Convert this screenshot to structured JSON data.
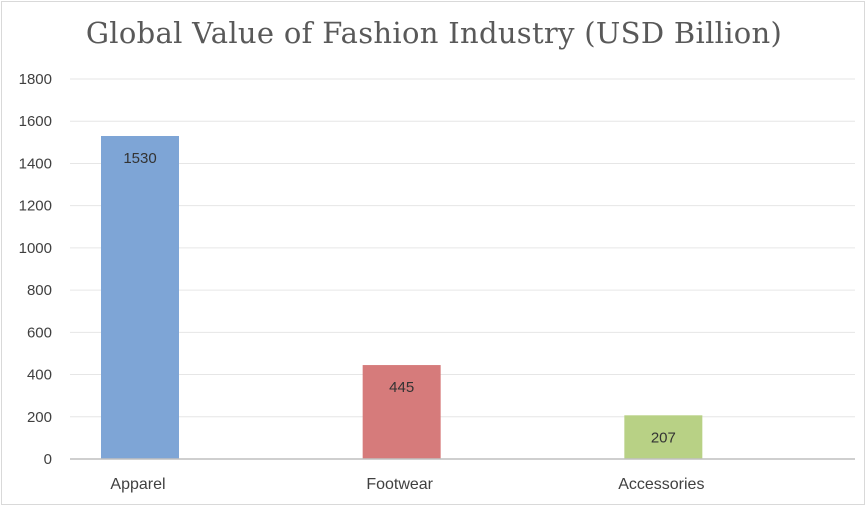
{
  "chart_data": {
    "type": "bar",
    "title": "Global Value of Fashion Industry (USD Billion)",
    "categories": [
      "Apparel",
      "Footwear",
      "Accessories"
    ],
    "values": [
      1530,
      445,
      207
    ],
    "colors": [
      "#7ea5d6",
      "#d67b7b",
      "#b8d185"
    ],
    "ylim": [
      0,
      1800
    ],
    "yticks": [
      0,
      200,
      400,
      600,
      800,
      1000,
      1200,
      1400,
      1600,
      1800
    ],
    "grid": true,
    "legend": "none",
    "data_labels": true
  }
}
